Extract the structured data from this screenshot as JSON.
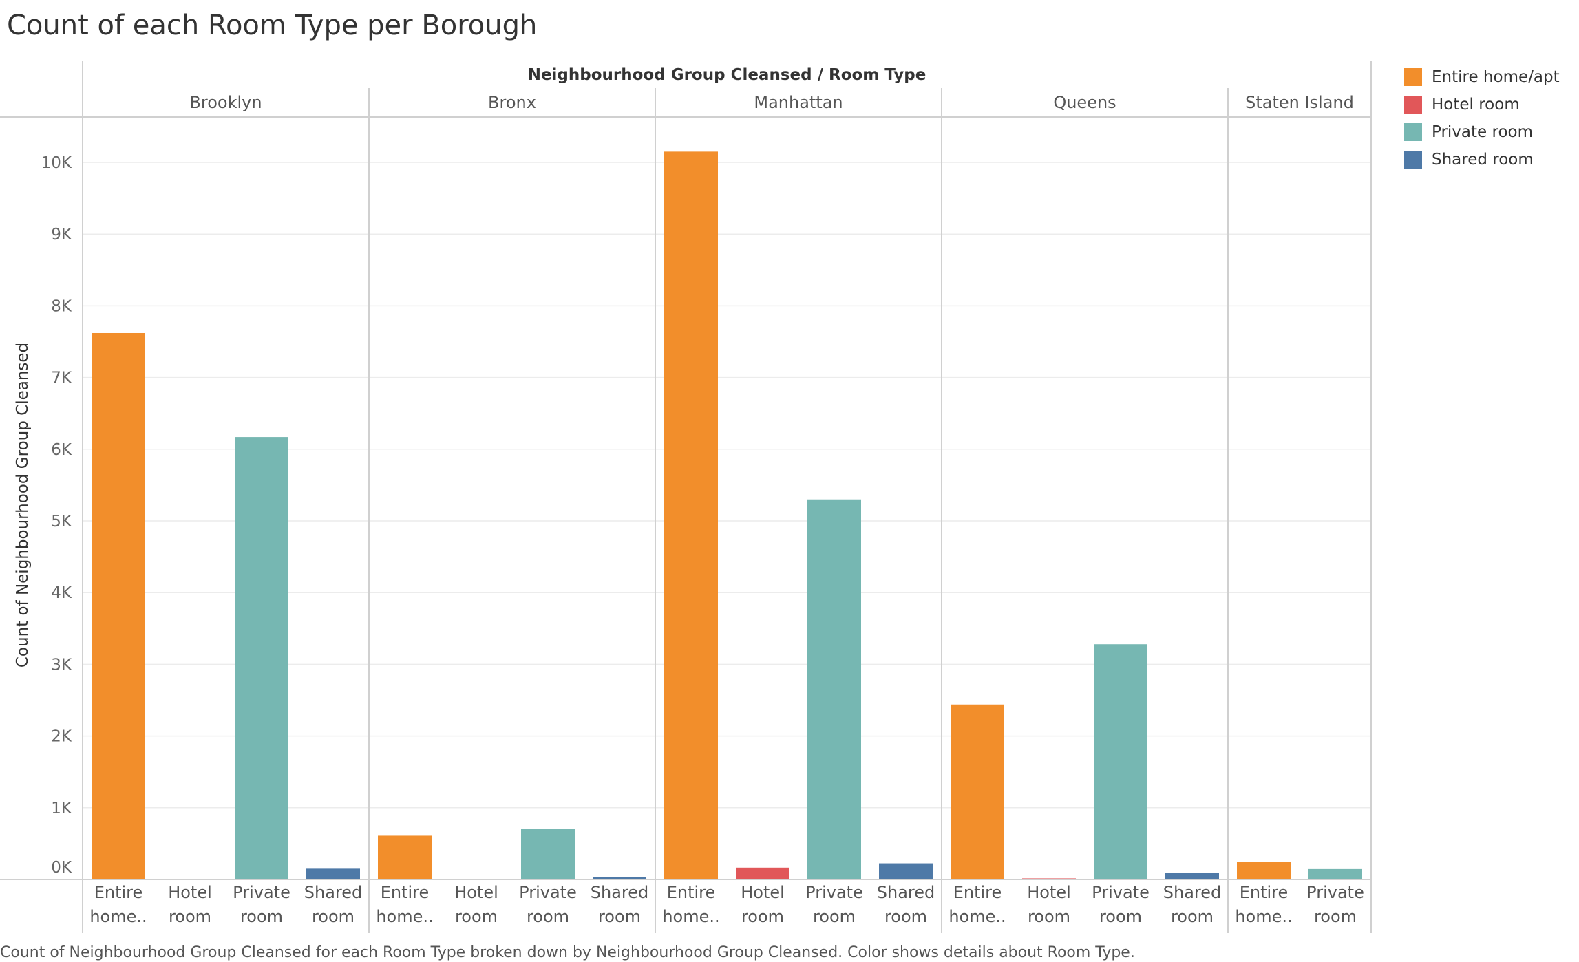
{
  "title": "Count of each Room Type per Borough",
  "caption": "Count of Neighbourhood Group Cleansed for each Room Type broken down by Neighbourhood Group Cleansed.  Color shows details about Room Type.",
  "legend": [
    {
      "label": "Entire home/apt",
      "color": "#f28e2b"
    },
    {
      "label": "Hotel room",
      "color": "#e15759"
    },
    {
      "label": "Private room",
      "color": "#76b7b2"
    },
    {
      "label": "Shared room",
      "color": "#4e79a7"
    }
  ],
  "chart_data": {
    "type": "bar",
    "header_title": "Neighbourhood Group Cleansed  /  Room Type",
    "ylabel": "Count of Neighbourhood Group Cleansed",
    "ylim": [
      0,
      10700
    ],
    "yticks": [
      0,
      1000,
      2000,
      3000,
      4000,
      5000,
      6000,
      7000,
      8000,
      9000,
      10000
    ],
    "ytick_labels": [
      "0K",
      "1K",
      "2K",
      "3K",
      "4K",
      "5K",
      "6K",
      "7K",
      "8K",
      "9K",
      "10K"
    ],
    "grid": true,
    "legend_position": "right",
    "groups": [
      {
        "name": "Brooklyn",
        "bars": [
          {
            "category": "Entire home/apt",
            "label_line1": "Entire",
            "label_line2": "home..",
            "value": 7620
          },
          {
            "category": "Hotel room",
            "label_line1": "Hotel",
            "label_line2": "room",
            "value": 0
          },
          {
            "category": "Private room",
            "label_line1": "Private",
            "label_line2": "room",
            "value": 6170
          },
          {
            "category": "Shared room",
            "label_line1": "Shared",
            "label_line2": "room",
            "value": 150
          }
        ]
      },
      {
        "name": "Bronx",
        "bars": [
          {
            "category": "Entire home/apt",
            "label_line1": "Entire",
            "label_line2": "home..",
            "value": 610
          },
          {
            "category": "Hotel room",
            "label_line1": "Hotel",
            "label_line2": "room",
            "value": 0
          },
          {
            "category": "Private room",
            "label_line1": "Private",
            "label_line2": "room",
            "value": 710
          },
          {
            "category": "Shared room",
            "label_line1": "Shared",
            "label_line2": "room",
            "value": 30
          }
        ]
      },
      {
        "name": "Manhattan",
        "bars": [
          {
            "category": "Entire home/apt",
            "label_line1": "Entire",
            "label_line2": "home..",
            "value": 10150
          },
          {
            "category": "Hotel room",
            "label_line1": "Hotel",
            "label_line2": "room",
            "value": 165
          },
          {
            "category": "Private room",
            "label_line1": "Private",
            "label_line2": "room",
            "value": 5300
          },
          {
            "category": "Shared room",
            "label_line1": "Shared",
            "label_line2": "room",
            "value": 225
          }
        ]
      },
      {
        "name": "Queens",
        "bars": [
          {
            "category": "Entire home/apt",
            "label_line1": "Entire",
            "label_line2": "home..",
            "value": 2440
          },
          {
            "category": "Hotel room",
            "label_line1": "Hotel",
            "label_line2": "room",
            "value": 15
          },
          {
            "category": "Private room",
            "label_line1": "Private",
            "label_line2": "room",
            "value": 3280
          },
          {
            "category": "Shared room",
            "label_line1": "Shared",
            "label_line2": "room",
            "value": 90
          }
        ]
      },
      {
        "name": "Staten Island",
        "bars": [
          {
            "category": "Entire home/apt",
            "label_line1": "Entire",
            "label_line2": "home..",
            "value": 240
          },
          {
            "category": "Private room",
            "label_line1": "Private",
            "label_line2": "room",
            "value": 145
          }
        ]
      }
    ]
  }
}
